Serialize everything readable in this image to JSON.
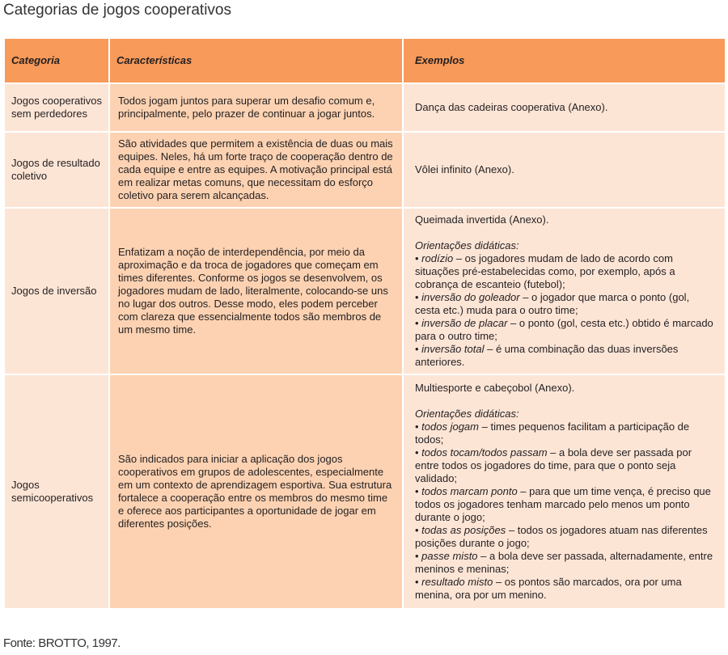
{
  "title": "Categorias de jogos cooperativos",
  "headers": [
    "Categoria",
    "Características",
    "Exemplos"
  ],
  "rows": [
    {
      "categoria": "Jogos cooperativos sem perdedores",
      "caracteristicas": "Todos jogam juntos para superar um desafio comum e, principalmente, pelo prazer de continuar a jogar juntos.",
      "exemplo": "Dança das cadeiras cooperativa (Anexo)."
    },
    {
      "categoria": "Jogos de resultado coletivo",
      "caracteristicas": "São atividades que permitem a existência de duas ou mais equipes. Neles, há um forte traço de cooperação dentro de cada equipe e entre as equipes. A motivação principal está em realizar metas comuns, que necessitam do esforço coletivo para serem alcançadas.",
      "exemplo": "Vôlei infinito (Anexo)."
    },
    {
      "categoria": "Jogos de inversão",
      "caracteristicas": "Enfatizam a noção de interdependência, por meio da aproximação e da troca de jogadores que começam em times diferentes. Conforme os jogos se desenvolvem, os jogadores mudam de lado, literalmente, colocando-se uns no lugar dos outros. Desse modo, eles podem perceber com clareza que essencialmente todos são membros de um mesmo time.",
      "exemplo": "Queimada invertida (Anexo).",
      "orientacoes_label": "Orientações didáticas:",
      "orientacoes": [
        {
          "termo": "rodízio",
          "texto": " – os jogadores mudam de lado de acordo com situações pré-estabelecidas como, por exemplo, após a cobrança de escanteio (futebol);"
        },
        {
          "termo": "inversão do goleador",
          "texto": " – o jogador que marca o ponto (gol, cesta etc.) muda para o outro time;"
        },
        {
          "termo": "inversão de placar",
          "texto": " – o ponto (gol, cesta etc.) obtido é marcado para o outro time;"
        },
        {
          "termo": "inversão total",
          "texto": " – é uma combinação das duas inversões anteriores."
        }
      ]
    },
    {
      "categoria": "Jogos semicooperativos",
      "caracteristicas": "São indicados para iniciar a aplicação dos jogos cooperativos em grupos de adolescentes, especialmente em um contexto de aprendizagem esportiva. Sua estrutura fortalece a cooperação entre os membros do mesmo time e oferece aos participantes a oportunidade de jogar em diferentes posições.",
      "exemplo": "Multiesporte e cabeçobol (Anexo).",
      "orientacoes_label": "Orientações didáticas:",
      "orientacoes": [
        {
          "termo": "todos jogam",
          "texto": " – times pequenos facilitam a participação de todos;"
        },
        {
          "termo": "todos tocam/todos passam",
          "texto": " – a bola deve ser passada por entre todos os jogadores do time, para que o ponto seja validado;"
        },
        {
          "termo": "todos marcam ponto",
          "texto": " – para que um time vença, é preciso que todos os jogadores tenham marcado pelo menos um ponto durante o jogo;"
        },
        {
          "termo": "todas as posições",
          "texto": " – todos os jogadores atuam nas diferentes posições durante o jogo;"
        },
        {
          "termo": "passe misto",
          "texto": " – a bola deve ser passada, alternadamente, entre meninos e meninas;"
        },
        {
          "termo": "resultado misto",
          "texto": " – os pontos são marcados, ora por uma menina, ora por um menino."
        }
      ]
    }
  ],
  "footer": "Fonte: BROTTO, 1997.",
  "colors": {
    "header": "#f79a5a",
    "col_light": "#fde5d6",
    "col_mid": "#fcd2b2"
  }
}
